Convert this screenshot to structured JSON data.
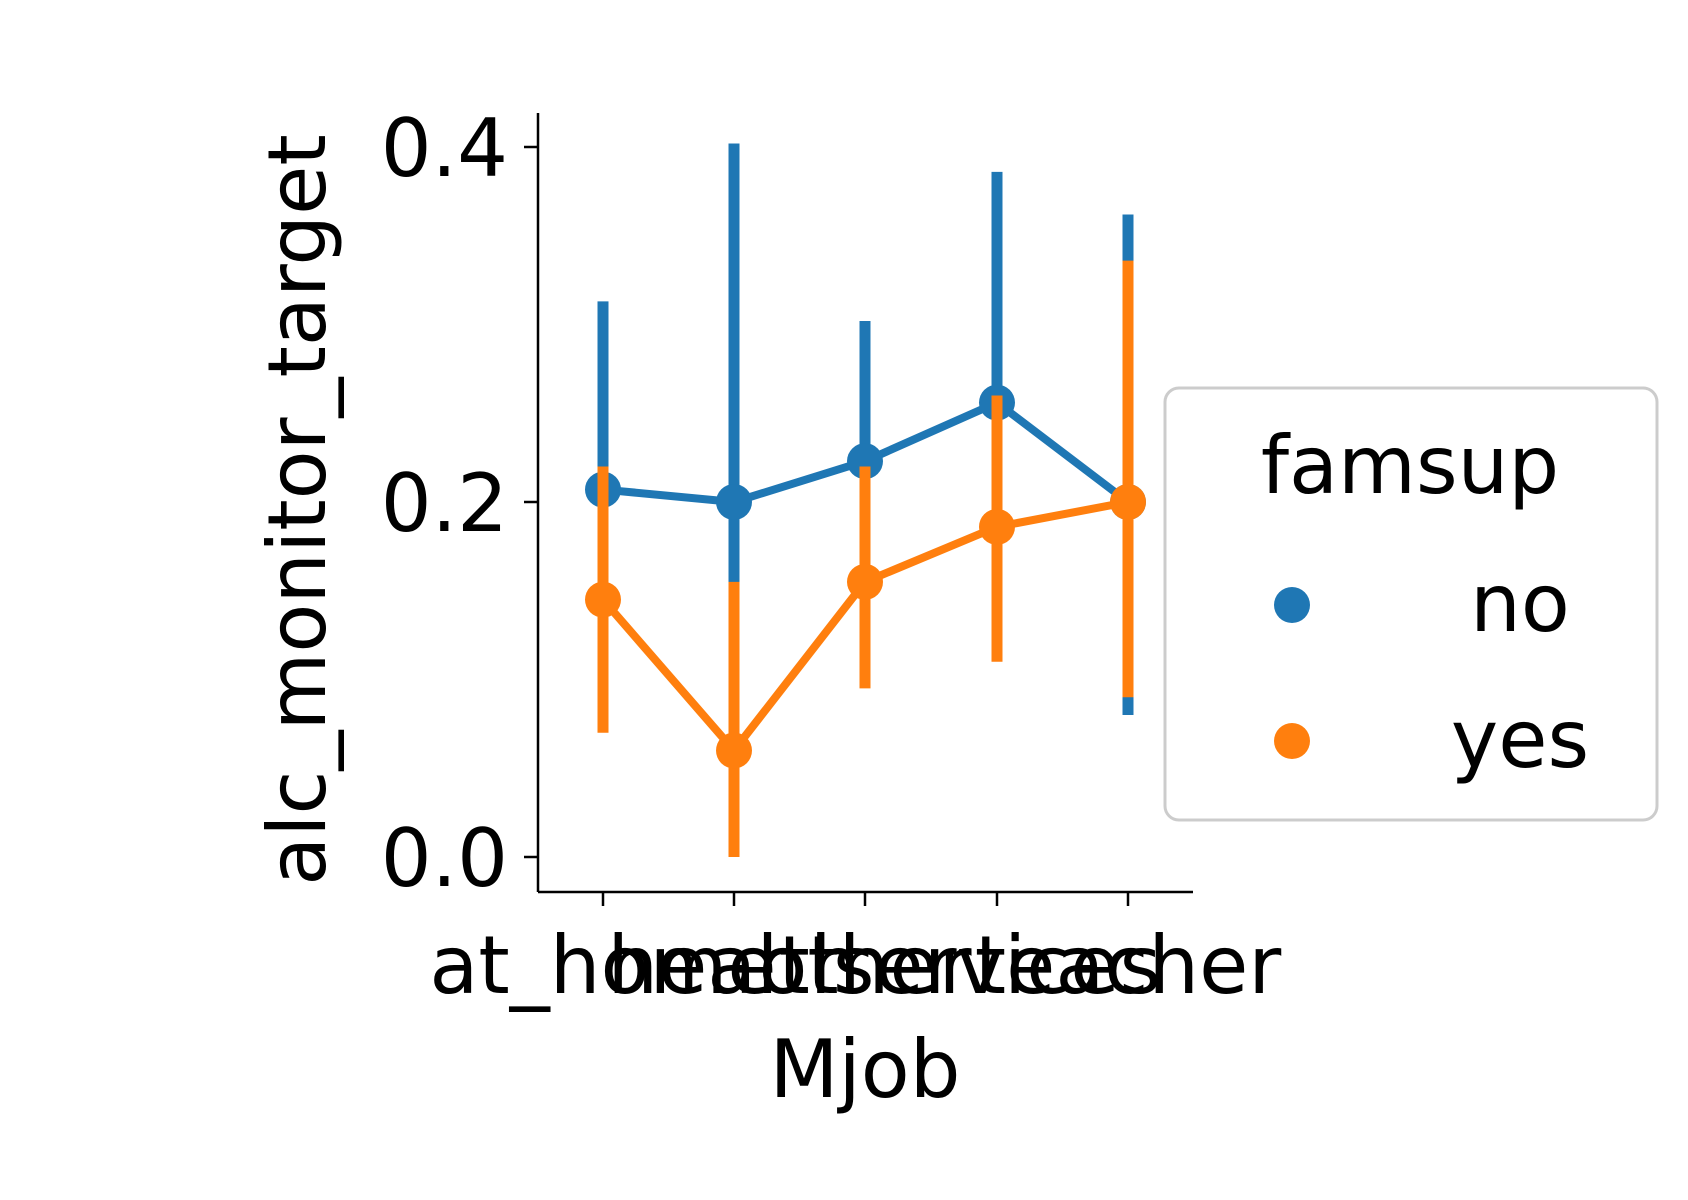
{
  "chart_data": {
    "type": "line",
    "xlabel": "Mjob",
    "ylabel": "alc_monitor_target",
    "categories": [
      "at_home",
      "health",
      "other",
      "services",
      "teacher"
    ],
    "ylim": [
      -0.02,
      0.42
    ],
    "yticks": [
      0.0,
      0.2,
      0.4
    ],
    "ytick_labels": [
      "0.0",
      "0.2",
      "0.4"
    ],
    "grid": false,
    "legend": {
      "title": "famsup",
      "placement": "right"
    },
    "series": [
      {
        "name": "no",
        "color": "#1f77b4",
        "values": [
          0.207,
          0.2,
          0.223,
          0.256,
          0.2
        ],
        "ci_low": [
          0.1,
          0.0,
          0.15,
          0.14,
          0.08
        ],
        "ci_high": [
          0.313,
          0.402,
          0.302,
          0.386,
          0.362
        ]
      },
      {
        "name": "yes",
        "color": "#ff7f0e",
        "values": [
          0.145,
          0.06,
          0.155,
          0.186,
          0.2
        ],
        "ci_low": [
          0.07,
          0.0,
          0.095,
          0.11,
          0.09
        ],
        "ci_high": [
          0.22,
          0.155,
          0.22,
          0.26,
          0.336
        ]
      }
    ]
  }
}
